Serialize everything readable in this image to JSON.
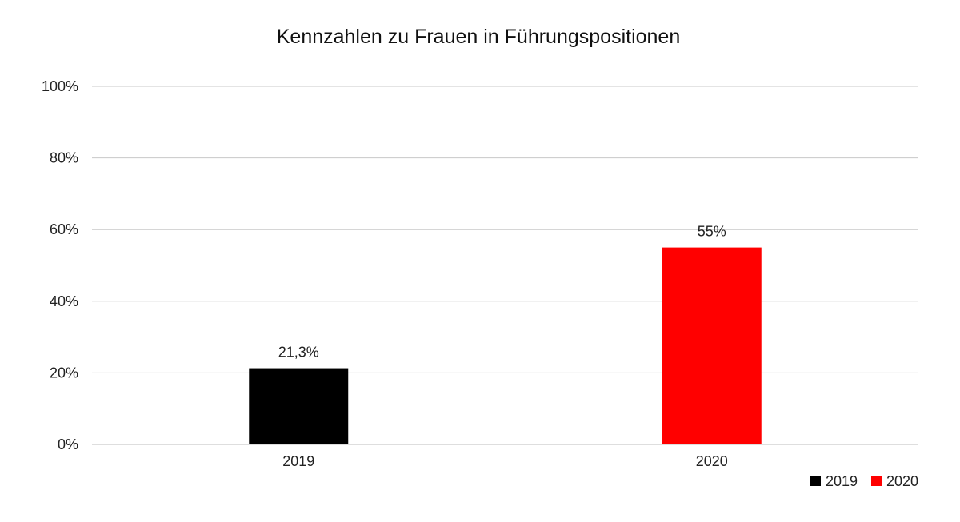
{
  "chart_data": {
    "type": "bar",
    "title": "Kennzahlen zu Frauen in Führungspositionen",
    "categories": [
      "2019",
      "2020"
    ],
    "series": [
      {
        "name": "2019",
        "values": [
          21.3,
          null
        ],
        "label": "21,3%",
        "color": "#000000"
      },
      {
        "name": "2020",
        "values": [
          null,
          55
        ],
        "label": "55%",
        "color": "#ff0000"
      }
    ],
    "data_labels": [
      "21,3%",
      "55%"
    ],
    "ylim": [
      0,
      100
    ],
    "yticks": [
      0,
      20,
      40,
      60,
      80,
      100
    ],
    "ytick_labels": [
      "0%",
      "20%",
      "40%",
      "60%",
      "80%",
      "100%"
    ],
    "grid": true,
    "legend": {
      "position": "bottom-right",
      "items": [
        "2019",
        "2020"
      ]
    },
    "xlabel": "",
    "ylabel": ""
  }
}
